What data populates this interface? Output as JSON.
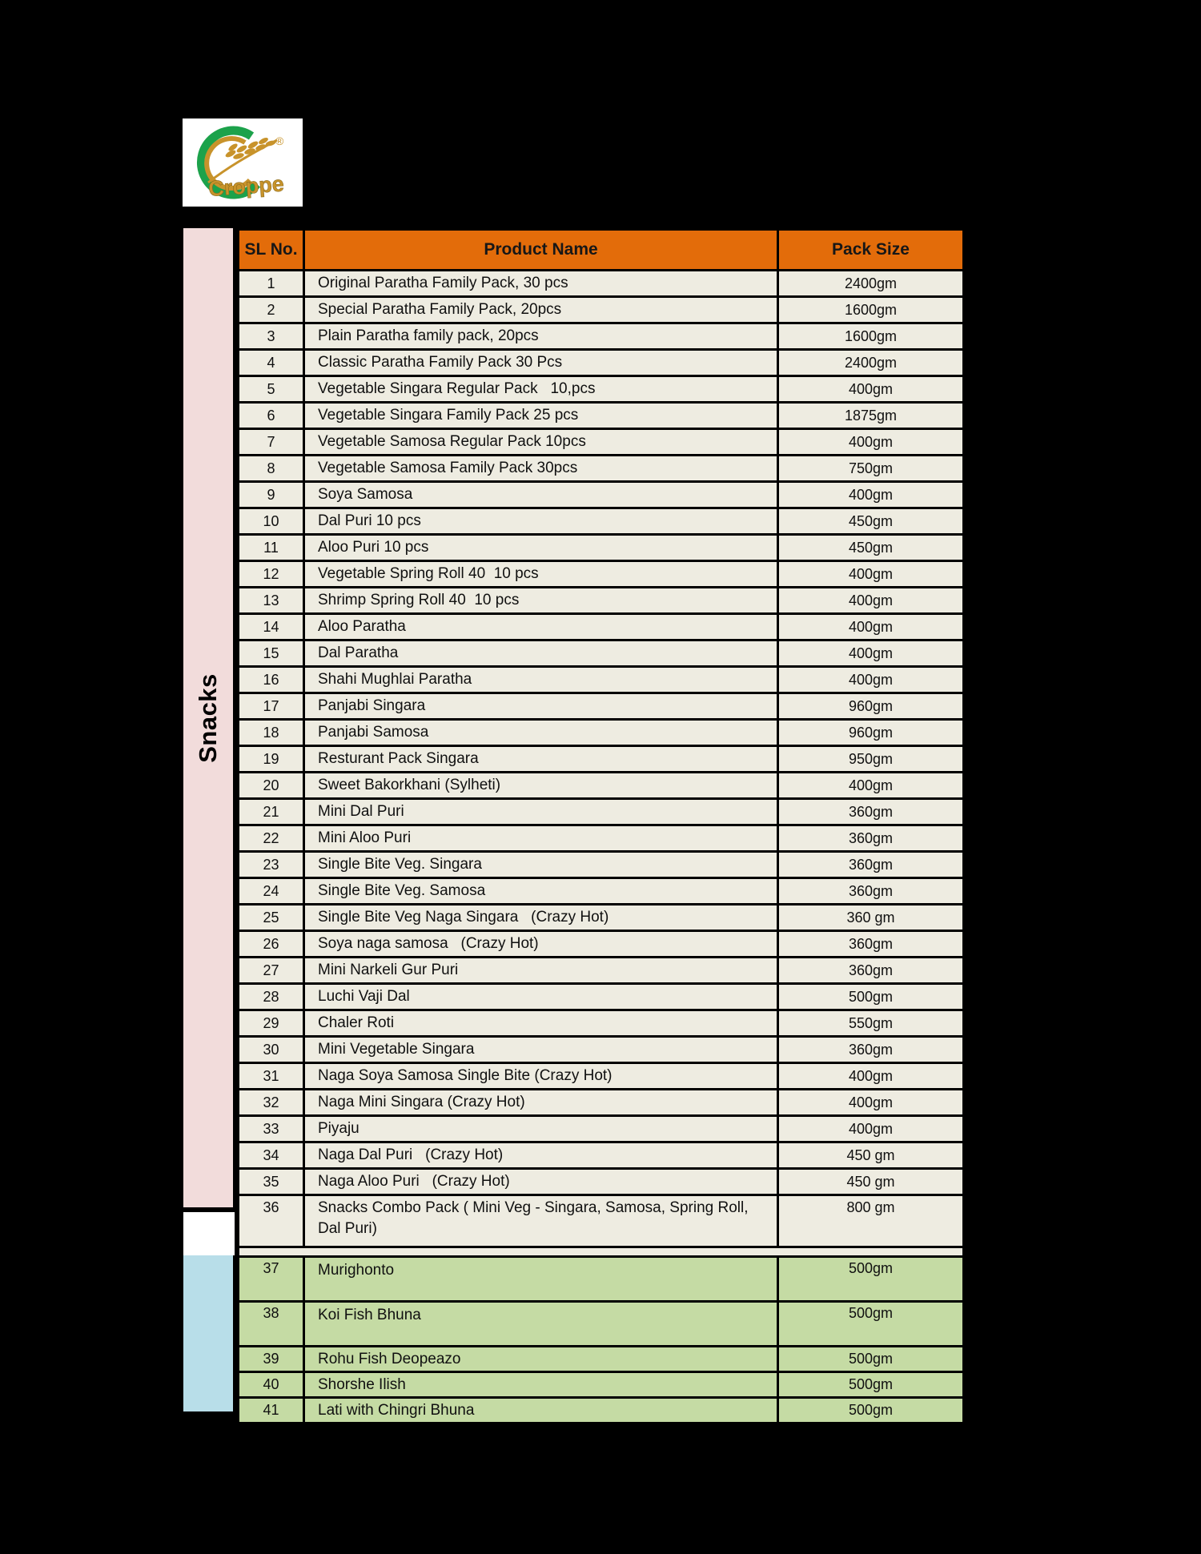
{
  "logo": {
    "brand": "Croppe",
    "registered": "®"
  },
  "colors": {
    "header_bg": "#E36C0A",
    "section1_row_bg": "#EEECE1",
    "section1_sidebar_bg": "#F2DCDB",
    "section2_row_bg": "#C5DBA4",
    "section2_sidebar_bg": "#B8DEE9",
    "white_block_bg": "#FFFFFF",
    "logo_green": "#1CA24B",
    "logo_gold": "#C8932B",
    "border": "#000000"
  },
  "table": {
    "headers": {
      "sl": "SL No.",
      "product": "Product Name",
      "pack": "Pack Size"
    },
    "section1": {
      "label": "Snacks",
      "rows": [
        {
          "sl": "1",
          "product": "Original Paratha Family Pack, 30 pcs",
          "pack": "2400gm"
        },
        {
          "sl": "2",
          "product": "Special Paratha Family Pack, 20pcs",
          "pack": "1600gm"
        },
        {
          "sl": "3",
          "product": "Plain Paratha family pack, 20pcs",
          "pack": "1600gm"
        },
        {
          "sl": "4",
          "product": "Classic Paratha Family Pack 30 Pcs",
          "pack": "2400gm"
        },
        {
          "sl": "5",
          "product": "Vegetable Singara Regular Pack   10,pcs",
          "pack": "400gm"
        },
        {
          "sl": "6",
          "product": "Vegetable Singara Family Pack 25 pcs",
          "pack": "1875gm"
        },
        {
          "sl": "7",
          "product": "Vegetable Samosa Regular Pack 10pcs",
          "pack": "400gm"
        },
        {
          "sl": "8",
          "product": "Vegetable Samosa Family Pack 30pcs",
          "pack": "750gm"
        },
        {
          "sl": "9",
          "product": "Soya Samosa",
          "pack": "400gm"
        },
        {
          "sl": "10",
          "product": "Dal Puri 10 pcs",
          "pack": "450gm"
        },
        {
          "sl": "11",
          "product": "Aloo Puri 10 pcs",
          "pack": "450gm"
        },
        {
          "sl": "12",
          "product": "Vegetable Spring Roll 40  10 pcs",
          "pack": "400gm"
        },
        {
          "sl": "13",
          "product": "Shrimp Spring Roll 40  10 pcs",
          "pack": "400gm"
        },
        {
          "sl": "14",
          "product": "Aloo Paratha",
          "pack": "400gm"
        },
        {
          "sl": "15",
          "product": "Dal Paratha",
          "pack": "400gm"
        },
        {
          "sl": "16",
          "product": "Shahi Mughlai Paratha",
          "pack": "400gm"
        },
        {
          "sl": "17",
          "product": "Panjabi Singara",
          "pack": "960gm"
        },
        {
          "sl": "18",
          "product": "Panjabi Samosa",
          "pack": "960gm"
        },
        {
          "sl": "19",
          "product": "Resturant Pack Singara",
          "pack": "950gm"
        },
        {
          "sl": "20",
          "product": "Sweet Bakorkhani (Sylheti)",
          "pack": "400gm"
        },
        {
          "sl": "21",
          "product": "Mini Dal Puri",
          "pack": "360gm"
        },
        {
          "sl": "22",
          "product": "Mini Aloo Puri",
          "pack": "360gm"
        },
        {
          "sl": "23",
          "product": "Single Bite Veg. Singara",
          "pack": "360gm"
        },
        {
          "sl": "24",
          "product": "Single Bite Veg. Samosa",
          "pack": "360gm"
        },
        {
          "sl": "25",
          "product": "Single Bite Veg Naga Singara   (Crazy Hot)",
          "pack": "360 gm"
        },
        {
          "sl": "26",
          "product": "Soya naga samosa   (Crazy Hot)",
          "pack": "360gm"
        },
        {
          "sl": "27",
          "product": "Mini Narkeli Gur Puri",
          "pack": "360gm"
        },
        {
          "sl": "28",
          "product": "Luchi Vaji Dal",
          "pack": "500gm"
        },
        {
          "sl": "29",
          "product": "Chaler Roti",
          "pack": "550gm"
        },
        {
          "sl": "30",
          "product": "Mini Vegetable Singara",
          "pack": "360gm"
        },
        {
          "sl": "31",
          "product": "Naga Soya Samosa Single Bite (Crazy Hot)",
          "pack": "400gm"
        },
        {
          "sl": "32",
          "product": "Naga Mini Singara (Crazy Hot)",
          "pack": "400gm"
        },
        {
          "sl": "33",
          "product": "Piyaju",
          "pack": "400gm"
        },
        {
          "sl": "34",
          "product": "Naga Dal Puri   (Crazy Hot)",
          "pack": "450 gm"
        },
        {
          "sl": "35",
          "product": "Naga Aloo Puri   (Crazy Hot)",
          "pack": "450 gm"
        },
        {
          "sl": "36",
          "product": "Snacks Combo Pack ( Mini Veg - Singara, Samosa, Spring Roll, Dal Puri)",
          "pack": "800 gm"
        }
      ]
    },
    "section2": {
      "label": "",
      "rows": [
        {
          "sl": "37",
          "product": "Murighonto",
          "pack": "500gm"
        },
        {
          "sl": "38",
          "product": "Koi Fish Bhuna",
          "pack": "500gm"
        },
        {
          "sl": "39",
          "product": "Rohu Fish Deopeazo",
          "pack": "500gm"
        },
        {
          "sl": "40",
          "product": "Shorshe Ilish",
          "pack": "500gm"
        },
        {
          "sl": "41",
          "product": "Lati with Chingri Bhuna",
          "pack": "500gm"
        }
      ]
    }
  }
}
